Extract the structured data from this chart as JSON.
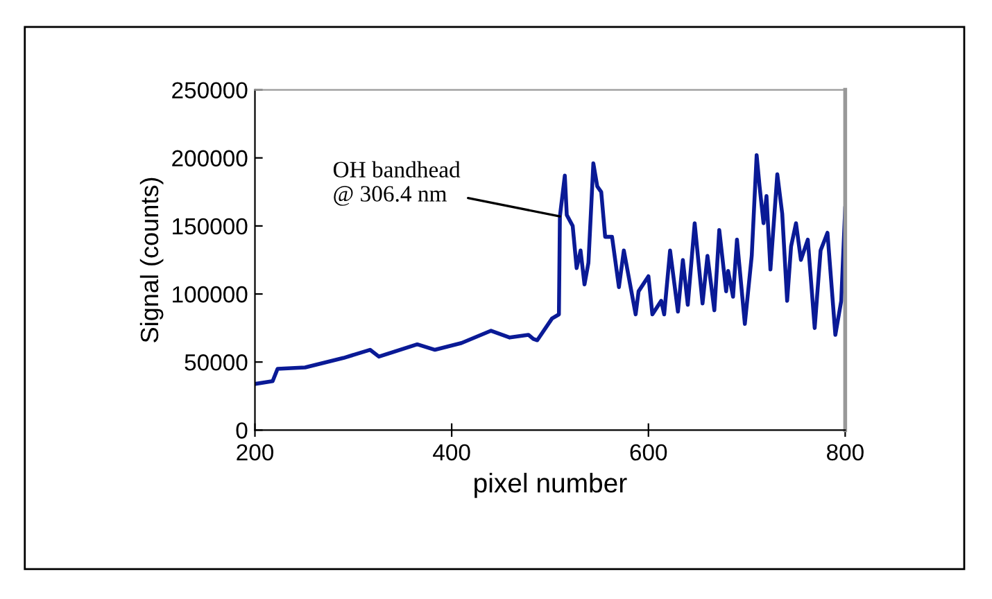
{
  "chart_data": {
    "type": "line",
    "xlabel": "pixel number",
    "ylabel": "Signal (counts)",
    "xlim": [
      200,
      800
    ],
    "xticks": [
      200,
      400,
      600,
      800
    ],
    "ylim": [
      0,
      250000
    ],
    "yticks": [
      0,
      50000,
      100000,
      150000,
      200000,
      250000
    ],
    "grid": false,
    "legend": false,
    "marker": "none",
    "line_style": "solid",
    "annotations": [
      {
        "text": "OH bandhead\n@ 306.4 nm",
        "x": 510,
        "y": 157000
      }
    ],
    "series": [
      {
        "color": "#0a1a96",
        "x": [
          201,
          218,
          223,
          251,
          290,
          317,
          326,
          365,
          383,
          410,
          440,
          459,
          478,
          483,
          487,
          502,
          509,
          510,
          515,
          517,
          523,
          527,
          531,
          535,
          539,
          544,
          548,
          552,
          556,
          563,
          570,
          575,
          587,
          590,
          600,
          604,
          613,
          616,
          622,
          630,
          635,
          640,
          647,
          655,
          660,
          667,
          672,
          679,
          681,
          686,
          690,
          698,
          705,
          710,
          713,
          717,
          720,
          724,
          731,
          736,
          741,
          745,
          750,
          755,
          762,
          769,
          775,
          782,
          790,
          796,
          800
        ],
        "values": [
          34000,
          36000,
          45000,
          46000,
          53000,
          59000,
          54000,
          63000,
          59000,
          64000,
          73000,
          68000,
          70000,
          67000,
          66000,
          82000,
          85000,
          157000,
          187000,
          158000,
          150000,
          119000,
          132000,
          107000,
          123000,
          196000,
          179000,
          175000,
          142000,
          142000,
          105000,
          132000,
          85000,
          102000,
          113000,
          85000,
          95000,
          85000,
          132000,
          87000,
          125000,
          92000,
          152000,
          93000,
          128000,
          88000,
          147000,
          102000,
          117000,
          98000,
          140000,
          78000,
          128000,
          202000,
          179000,
          152000,
          172000,
          118000,
          188000,
          159000,
          95000,
          135000,
          152000,
          125000,
          140000,
          75000,
          132000,
          145000,
          70000,
          95000,
          163000
        ]
      }
    ]
  }
}
